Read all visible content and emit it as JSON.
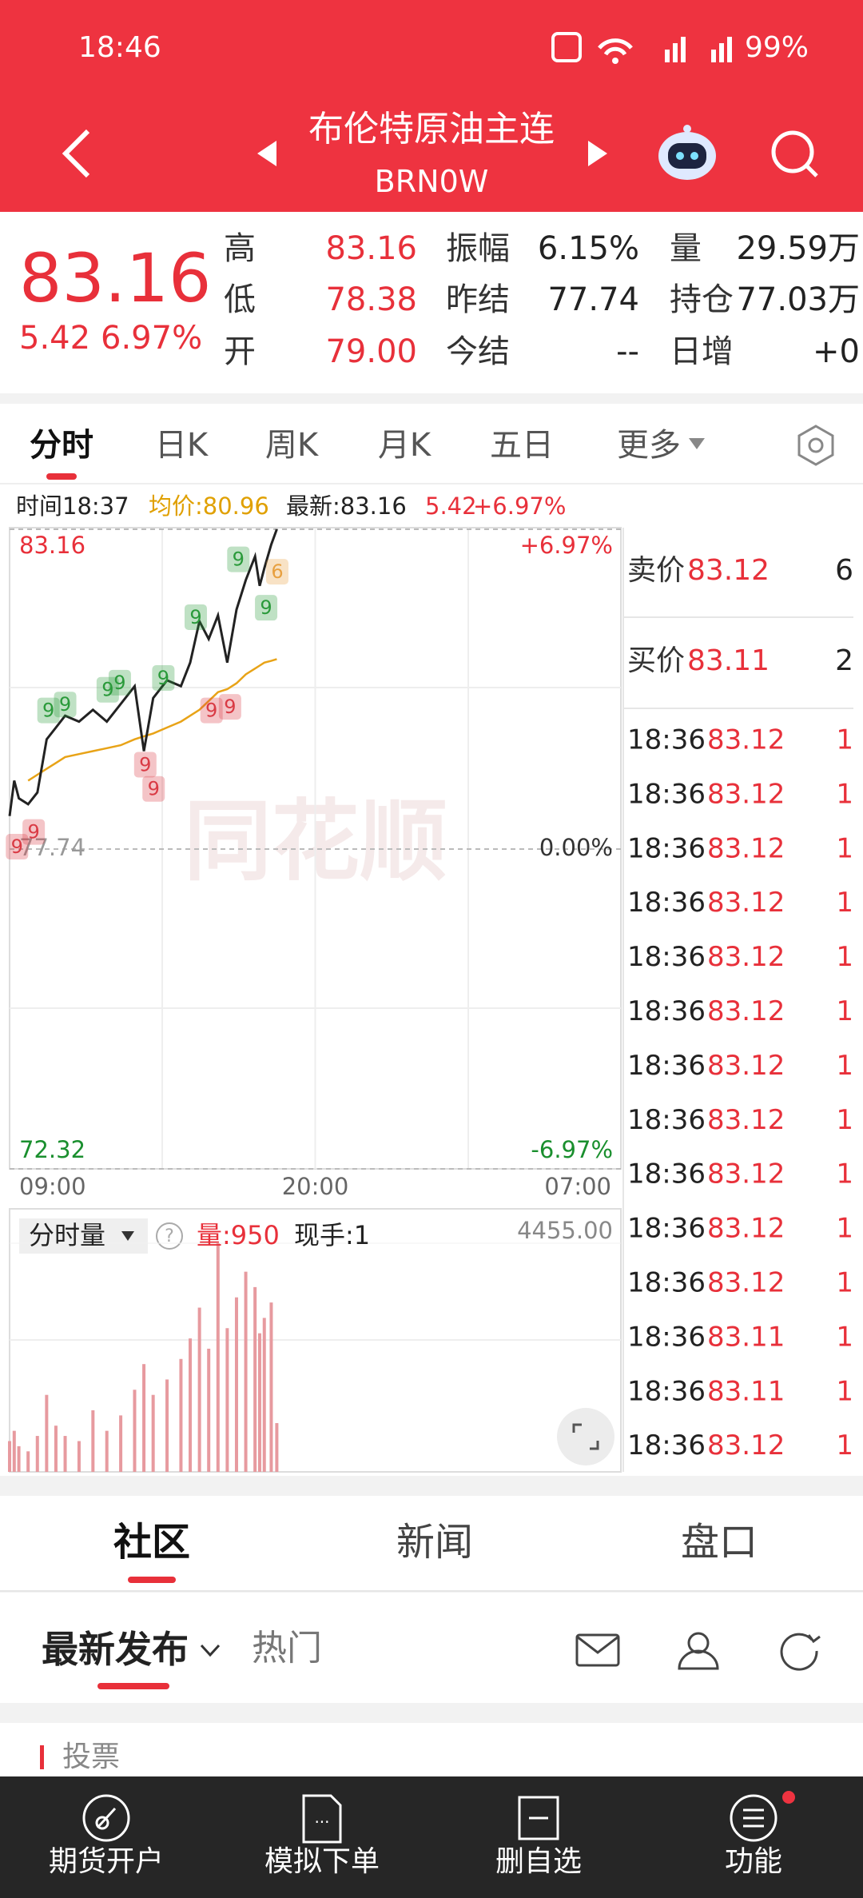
{
  "status_bar": {
    "time": "18:46",
    "battery": "99%"
  },
  "header": {
    "title": "布伦特原油主连",
    "code": "BRN0W"
  },
  "quote": {
    "price": "83.16",
    "change": "5.42",
    "change_pct": "6.97%",
    "stats": [
      {
        "label": "高",
        "value": "83.16",
        "color": "#e8303a"
      },
      {
        "label": "低",
        "value": "78.38",
        "color": "#e8303a"
      },
      {
        "label": "开",
        "value": "79.00",
        "color": "#e8303a"
      },
      {
        "label": "振幅",
        "value": "6.15%",
        "color": "#222222"
      },
      {
        "label": "昨结",
        "value": "77.74",
        "color": "#222222"
      },
      {
        "label": "今结",
        "value": "--",
        "color": "#222222"
      },
      {
        "label": "量",
        "value": "29.59万",
        "color": "#222222"
      },
      {
        "label": "持仓",
        "value": "77.03万",
        "color": "#222222"
      },
      {
        "label": "日增",
        "value": "+0",
        "color": "#222222"
      }
    ]
  },
  "tabs": [
    "分时",
    "日K",
    "周K",
    "月K",
    "五日",
    "更多"
  ],
  "info": {
    "time": "时间18:37",
    "avg": "均价:80.96",
    "latest": "最新:83.16",
    "change": "5.42",
    "change_pct": "+6.97%"
  },
  "chart_data": [
    {
      "type": "line",
      "watermark": "同花顺",
      "x": [
        "09:00",
        "09:10",
        "09:20",
        "09:40",
        "10:00",
        "10:20",
        "10:40",
        "11:00",
        "11:30",
        "12:00",
        "12:30",
        "13:00",
        "13:30",
        "13:50",
        "14:10",
        "14:40",
        "15:10",
        "15:30",
        "15:50",
        "16:10",
        "16:30",
        "16:50",
        "17:10",
        "17:30",
        "17:50",
        "18:00",
        "18:10",
        "18:25",
        "18:37"
      ],
      "series": [
        {
          "color": "#222222",
          "values": [
            78.3,
            78.9,
            78.6,
            78.5,
            78.7,
            79.6,
            79.8,
            80.0,
            79.9,
            80.1,
            79.9,
            80.2,
            80.5,
            79.4,
            80.3,
            80.6,
            80.5,
            80.9,
            81.6,
            81.3,
            81.7,
            80.9,
            81.8,
            82.3,
            82.7,
            82.2,
            82.5,
            82.9,
            83.16
          ]
        },
        {
          "color": "#e8a317",
          "values": [
            null,
            null,
            null,
            78.9,
            79.0,
            79.1,
            79.2,
            79.3,
            79.35,
            79.4,
            79.45,
            79.5,
            79.6,
            79.65,
            79.7,
            79.8,
            79.9,
            80.0,
            80.1,
            80.25,
            80.4,
            80.45,
            80.55,
            80.7,
            80.8,
            80.85,
            80.9,
            80.93,
            80.96
          ]
        }
      ],
      "ylim": [
        72.32,
        83.16
      ],
      "yticks": [
        83.16,
        77.74,
        72.32
      ],
      "ytick_colors": [
        "#e8303a",
        "#999999",
        "#1a8f2e"
      ],
      "pct_labels": [
        "+6.97%",
        "0.00%",
        "-6.97%"
      ],
      "pct_colors": [
        "#e8303a",
        "#333333",
        "#1a8f2e"
      ],
      "xticks": [
        "09:00",
        "20:00",
        "07:00"
      ],
      "annotations": [
        {
          "x": "09:16",
          "y": 77.78,
          "label": "9",
          "color": "#d93a44"
        },
        {
          "x": "09:52",
          "y": 78.03,
          "label": "9",
          "color": "#d93a44"
        },
        {
          "x": "10:24",
          "y": 80.09,
          "label": "9",
          "color": "#2a9a3a"
        },
        {
          "x": "11:00",
          "y": 80.19,
          "label": "9",
          "color": "#2a9a3a"
        },
        {
          "x": "12:32",
          "y": 80.44,
          "label": "9",
          "color": "#2a9a3a"
        },
        {
          "x": "12:58",
          "y": 80.56,
          "label": "9",
          "color": "#2a9a3a"
        },
        {
          "x": "13:53",
          "y": 79.17,
          "label": "9",
          "color": "#d93a44"
        },
        {
          "x": "14:11",
          "y": 78.76,
          "label": "9",
          "color": "#d93a44"
        },
        {
          "x": "14:32",
          "y": 80.64,
          "label": "9",
          "color": "#2a9a3a"
        },
        {
          "x": "15:42",
          "y": 81.67,
          "label": "9",
          "color": "#2a9a3a"
        },
        {
          "x": "16:16",
          "y": 80.09,
          "label": "9",
          "color": "#d93a44"
        },
        {
          "x": "16:56",
          "y": 80.15,
          "label": "9",
          "color": "#d93a44"
        },
        {
          "x": "17:14",
          "y": 82.65,
          "label": "9",
          "color": "#2a9a3a"
        },
        {
          "x": "18:14",
          "y": 81.83,
          "label": "9",
          "color": "#2a9a3a"
        },
        {
          "x": "18:38",
          "y": 82.44,
          "label": "6",
          "color": "#e8a040"
        }
      ]
    },
    {
      "type": "bar",
      "title": "分时量",
      "volume_label": "量:950",
      "hand_label": "现手:1",
      "x": [
        "09:00",
        "09:10",
        "09:20",
        "09:40",
        "10:00",
        "10:20",
        "10:40",
        "11:00",
        "11:30",
        "12:00",
        "12:30",
        "13:00",
        "13:30",
        "13:50",
        "14:10",
        "14:40",
        "15:10",
        "15:30",
        "15:50",
        "16:10",
        "16:30",
        "16:50",
        "17:10",
        "17:30",
        "17:50",
        "18:00",
        "18:10",
        "18:25",
        "18:37"
      ],
      "values": [
        600,
        800,
        500,
        400,
        700,
        1500,
        900,
        700,
        600,
        1200,
        800,
        1100,
        1600,
        2100,
        1500,
        1800,
        2200,
        2600,
        3200,
        2400,
        4455,
        2800,
        3400,
        3900,
        3600,
        2700,
        3000,
        3300,
        950
      ],
      "color": "#e79a9f",
      "ylim": [
        0,
        4455
      ],
      "yticks": [
        {
          "value": 4455,
          "label": "4455.00"
        }
      ]
    }
  ],
  "order_book": {
    "ask": {
      "label": "卖价",
      "price": "83.12",
      "qty": "6"
    },
    "bid": {
      "label": "买价",
      "price": "83.11",
      "qty": "2"
    },
    "trades": [
      [
        "18:36",
        "83.12",
        "1"
      ],
      [
        "18:36",
        "83.12",
        "1"
      ],
      [
        "18:36",
        "83.12",
        "1"
      ],
      [
        "18:36",
        "83.12",
        "1"
      ],
      [
        "18:36",
        "83.12",
        "1"
      ],
      [
        "18:36",
        "83.12",
        "1"
      ],
      [
        "18:36",
        "83.12",
        "1"
      ],
      [
        "18:36",
        "83.12",
        "1"
      ],
      [
        "18:36",
        "83.12",
        "1"
      ],
      [
        "18:36",
        "83.12",
        "1"
      ],
      [
        "18:36",
        "83.12",
        "1"
      ],
      [
        "18:36",
        "83.11",
        "1"
      ],
      [
        "18:36",
        "83.11",
        "1"
      ],
      [
        "18:36",
        "83.12",
        "1"
      ]
    ]
  },
  "community": {
    "tabs": [
      "社区",
      "新闻",
      "盘口"
    ],
    "subtabs": [
      "最新发布",
      "热门"
    ],
    "card": "投票"
  },
  "nav": [
    "期货开户",
    "模拟下单",
    "删自选",
    "功能"
  ]
}
